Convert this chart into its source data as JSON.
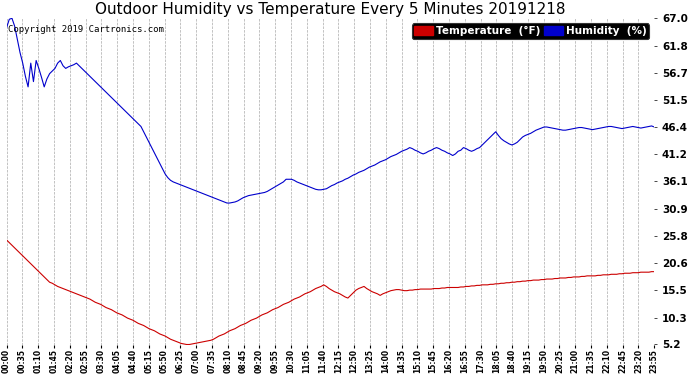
{
  "title": "Outdoor Humidity vs Temperature Every 5 Minutes 20191218",
  "copyright": "Copyright 2019 Cartronics.com",
  "legend_temp": "Temperature  (°F)",
  "legend_humid": "Humidity  (%)",
  "temp_color": "#cc0000",
  "humid_color": "#0000cc",
  "background_color": "#ffffff",
  "grid_color": "#aaaaaa",
  "ylim": [
    5.2,
    67.0
  ],
  "yticks": [
    5.2,
    10.3,
    15.5,
    20.6,
    25.8,
    30.9,
    36.1,
    41.2,
    46.4,
    51.5,
    56.7,
    61.8,
    67.0
  ],
  "title_fontsize": 11,
  "copyright_fontsize": 6.5,
  "x_label_fontsize": 5.5,
  "y_label_fontsize": 7.5,
  "legend_fontsize": 7.5,
  "time_labels": [
    "00:00",
    "00:35",
    "01:10",
    "01:45",
    "02:20",
    "02:55",
    "03:30",
    "04:05",
    "04:40",
    "05:15",
    "05:50",
    "06:25",
    "07:00",
    "07:35",
    "08:10",
    "08:45",
    "09:20",
    "09:55",
    "10:30",
    "11:05",
    "11:40",
    "12:15",
    "12:50",
    "13:25",
    "14:00",
    "14:35",
    "15:10",
    "15:45",
    "16:20",
    "16:55",
    "17:30",
    "18:05",
    "18:40",
    "19:15",
    "19:50",
    "20:25",
    "21:00",
    "21:35",
    "22:10",
    "22:45",
    "23:20",
    "23:55"
  ],
  "humidity": [
    65.2,
    66.8,
    67.0,
    65.5,
    63.0,
    60.5,
    58.5,
    56.0,
    54.0,
    58.5,
    55.0,
    59.0,
    57.5,
    55.8,
    54.0,
    55.5,
    56.5,
    57.0,
    57.5,
    58.5,
    59.0,
    58.0,
    57.5,
    57.8,
    58.0,
    58.2,
    58.5,
    58.0,
    57.5,
    57.0,
    56.5,
    56.0,
    55.5,
    55.0,
    54.5,
    54.0,
    53.5,
    53.0,
    52.5,
    52.0,
    51.5,
    51.0,
    50.5,
    50.0,
    49.5,
    49.0,
    48.5,
    48.0,
    47.5,
    47.0,
    46.5,
    45.5,
    44.5,
    43.5,
    42.5,
    41.5,
    40.5,
    39.5,
    38.5,
    37.5,
    36.8,
    36.3,
    36.0,
    35.8,
    35.6,
    35.4,
    35.2,
    35.0,
    34.8,
    34.6,
    34.4,
    34.2,
    34.0,
    33.8,
    33.6,
    33.4,
    33.2,
    33.0,
    32.8,
    32.6,
    32.4,
    32.2,
    32.0,
    32.0,
    32.1,
    32.2,
    32.4,
    32.7,
    33.0,
    33.2,
    33.4,
    33.5,
    33.6,
    33.7,
    33.8,
    33.9,
    34.0,
    34.2,
    34.5,
    34.8,
    35.1,
    35.4,
    35.7,
    36.0,
    36.5,
    36.5,
    36.5,
    36.3,
    36.0,
    35.8,
    35.6,
    35.4,
    35.2,
    35.0,
    34.8,
    34.6,
    34.5,
    34.5,
    34.6,
    34.7,
    35.0,
    35.3,
    35.5,
    35.8,
    36.0,
    36.2,
    36.5,
    36.7,
    37.0,
    37.3,
    37.5,
    37.8,
    38.0,
    38.2,
    38.5,
    38.8,
    39.0,
    39.2,
    39.5,
    39.8,
    40.0,
    40.2,
    40.5,
    40.8,
    41.0,
    41.2,
    41.5,
    41.8,
    42.0,
    42.2,
    42.5,
    42.3,
    42.0,
    41.8,
    41.5,
    41.3,
    41.5,
    41.8,
    42.0,
    42.3,
    42.5,
    42.3,
    42.0,
    41.8,
    41.5,
    41.3,
    41.0,
    41.3,
    41.8,
    42.0,
    42.5,
    42.3,
    42.0,
    41.8,
    42.0,
    42.3,
    42.5,
    43.0,
    43.5,
    44.0,
    44.5,
    45.0,
    45.5,
    44.8,
    44.2,
    43.8,
    43.5,
    43.2,
    43.0,
    43.2,
    43.5,
    44.0,
    44.5,
    44.8,
    45.0,
    45.2,
    45.5,
    45.8,
    46.0,
    46.2,
    46.4,
    46.4,
    46.3,
    46.2,
    46.1,
    46.0,
    45.9,
    45.8,
    45.8,
    45.9,
    46.0,
    46.1,
    46.2,
    46.3,
    46.3,
    46.2,
    46.1,
    46.0,
    45.9,
    46.0,
    46.1,
    46.2,
    46.3,
    46.4,
    46.5,
    46.5,
    46.4,
    46.3,
    46.2,
    46.1,
    46.2,
    46.3,
    46.4,
    46.5,
    46.4,
    46.3,
    46.2,
    46.3,
    46.4,
    46.5,
    46.6,
    46.4
  ],
  "temperature": [
    25.0,
    24.5,
    24.0,
    23.5,
    23.0,
    22.5,
    22.0,
    21.5,
    21.0,
    20.5,
    20.0,
    19.5,
    19.0,
    18.5,
    18.0,
    17.5,
    17.0,
    16.8,
    16.5,
    16.2,
    16.0,
    15.8,
    15.6,
    15.4,
    15.2,
    15.0,
    14.8,
    14.6,
    14.4,
    14.2,
    14.0,
    13.8,
    13.5,
    13.2,
    13.0,
    12.8,
    12.5,
    12.2,
    12.0,
    11.8,
    11.5,
    11.2,
    11.0,
    10.8,
    10.5,
    10.2,
    10.0,
    9.8,
    9.5,
    9.2,
    9.0,
    8.8,
    8.5,
    8.2,
    8.0,
    7.8,
    7.5,
    7.2,
    7.0,
    6.8,
    6.5,
    6.2,
    6.0,
    5.8,
    5.6,
    5.4,
    5.3,
    5.2,
    5.2,
    5.3,
    5.4,
    5.5,
    5.6,
    5.7,
    5.8,
    5.9,
    6.0,
    6.2,
    6.5,
    6.8,
    7.0,
    7.2,
    7.5,
    7.8,
    8.0,
    8.2,
    8.5,
    8.8,
    9.0,
    9.2,
    9.5,
    9.8,
    10.0,
    10.2,
    10.5,
    10.8,
    11.0,
    11.2,
    11.5,
    11.8,
    12.0,
    12.2,
    12.5,
    12.8,
    13.0,
    13.2,
    13.5,
    13.8,
    14.0,
    14.2,
    14.5,
    14.8,
    15.0,
    15.2,
    15.5,
    15.8,
    16.0,
    16.2,
    16.5,
    16.2,
    15.8,
    15.5,
    15.2,
    15.0,
    14.8,
    14.5,
    14.2,
    14.0,
    14.5,
    15.0,
    15.5,
    15.8,
    16.0,
    16.2,
    15.8,
    15.5,
    15.2,
    15.0,
    14.8,
    14.5,
    14.8,
    15.0,
    15.2,
    15.4,
    15.5,
    15.6,
    15.6,
    15.5,
    15.4,
    15.4,
    15.5,
    15.5,
    15.6,
    15.6,
    15.7,
    15.7,
    15.7,
    15.7,
    15.7,
    15.8,
    15.8,
    15.8,
    15.9,
    15.9,
    16.0,
    16.0,
    16.0,
    16.0,
    16.0,
    16.1,
    16.1,
    16.2,
    16.2,
    16.3,
    16.3,
    16.4,
    16.4,
    16.5,
    16.5,
    16.5,
    16.6,
    16.6,
    16.7,
    16.7,
    16.8,
    16.8,
    16.9,
    16.9,
    17.0,
    17.0,
    17.1,
    17.1,
    17.2,
    17.2,
    17.3,
    17.3,
    17.4,
    17.4,
    17.4,
    17.5,
    17.5,
    17.6,
    17.6,
    17.6,
    17.7,
    17.7,
    17.8,
    17.8,
    17.8,
    17.9,
    17.9,
    18.0,
    18.0,
    18.0,
    18.1,
    18.1,
    18.2,
    18.2,
    18.2,
    18.2,
    18.3,
    18.3,
    18.4,
    18.4,
    18.4,
    18.5,
    18.5,
    18.5,
    18.6,
    18.6,
    18.7,
    18.7,
    18.7,
    18.8,
    18.8,
    18.8,
    18.9,
    18.9,
    18.9,
    18.9,
    19.0,
    19.0
  ]
}
